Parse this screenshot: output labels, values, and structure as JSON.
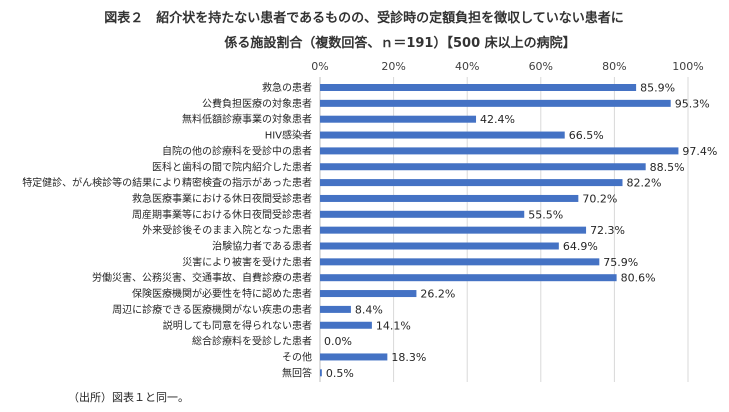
{
  "chart_data": {
    "type": "bar",
    "orientation": "horizontal",
    "title_lines": [
      "図表２　紹介状を持たない患者であるものの、受診時の定額負担を徴収していない患者に",
      "係る施設割合（複数回答、ｎ＝191）【500 床以上の病院】"
    ],
    "xlabel": "",
    "ylabel": "",
    "xlim": [
      0,
      100
    ],
    "xticks": [
      0,
      20,
      40,
      60,
      80,
      100
    ],
    "xtick_labels": [
      "0%",
      "20%",
      "40%",
      "60%",
      "80%",
      "100%"
    ],
    "axis_position": "top",
    "grid": true,
    "legend": "none",
    "bar_color": "#4472C4",
    "categories": [
      "救急の患者",
      "公費負担医療の対象患者",
      "無料低額診療事業の対象患者",
      "HIV感染者",
      "自院の他の診療科を受診中の患者",
      "医科と歯科の間で院内紹介した患者",
      "特定健診、がん検診等の結果により精密検査の指示があった患者",
      "救急医療事業における休日夜間受診患者",
      "周産期事業等における休日夜間受診患者",
      "外来受診後そのまま入院となった患者",
      "治験協力者である患者",
      "災害により被害を受けた患者",
      "労働災害、公務災害、交通事故、自費診療の患者",
      "保険医療機関が必要性を特に認めた患者",
      "周辺に診療できる医療機関がない疾患の患者",
      "説明しても同意を得られない患者",
      "総合診療料を受診した患者",
      "その他",
      "無回答"
    ],
    "values": [
      85.9,
      95.3,
      42.4,
      66.5,
      97.4,
      88.5,
      82.2,
      70.2,
      55.5,
      72.3,
      64.9,
      75.9,
      80.6,
      26.2,
      8.4,
      14.1,
      0.0,
      18.3,
      0.5
    ],
    "data_labels": [
      "85.9%",
      "95.3%",
      "42.4%",
      "66.5%",
      "97.4%",
      "88.5%",
      "82.2%",
      "70.2%",
      "55.5%",
      "72.3%",
      "64.9%",
      "75.9%",
      "80.6%",
      "26.2%",
      "8.4%",
      "14.1%",
      "0.0%",
      "18.3%",
      "0.5%"
    ]
  },
  "footer": {
    "source_note": "（出所）図表１と同一。"
  }
}
